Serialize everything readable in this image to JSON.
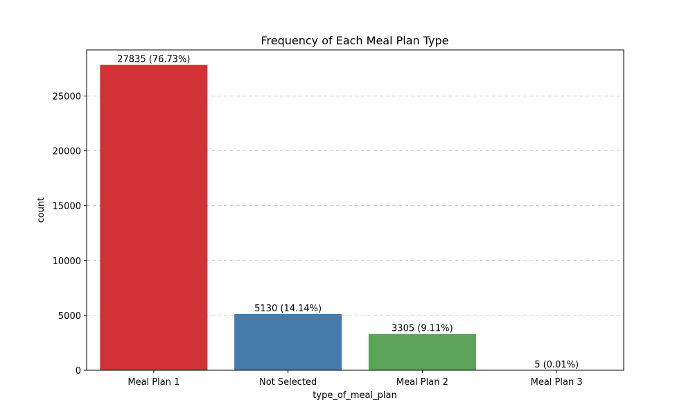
{
  "chart_data": {
    "type": "bar",
    "title": "Frequency of Each Meal Plan Type",
    "xlabel": "type_of_meal_plan",
    "ylabel": "count",
    "categories": [
      "Meal Plan 1",
      "Not Selected",
      "Meal Plan 2",
      "Meal Plan 3"
    ],
    "values": [
      27835,
      5130,
      3305,
      5
    ],
    "data_labels": [
      "27835 (76.73%)",
      "5130 (14.14%)",
      "3305 (9.11%)",
      "5 (0.01%)"
    ],
    "colors": [
      "#d03236",
      "#457cab",
      "#5ba45a",
      "#984ea3"
    ],
    "ylim": [
      0,
      29200
    ],
    "yticks": [
      0,
      5000,
      10000,
      15000,
      20000,
      25000
    ],
    "grid": true
  }
}
